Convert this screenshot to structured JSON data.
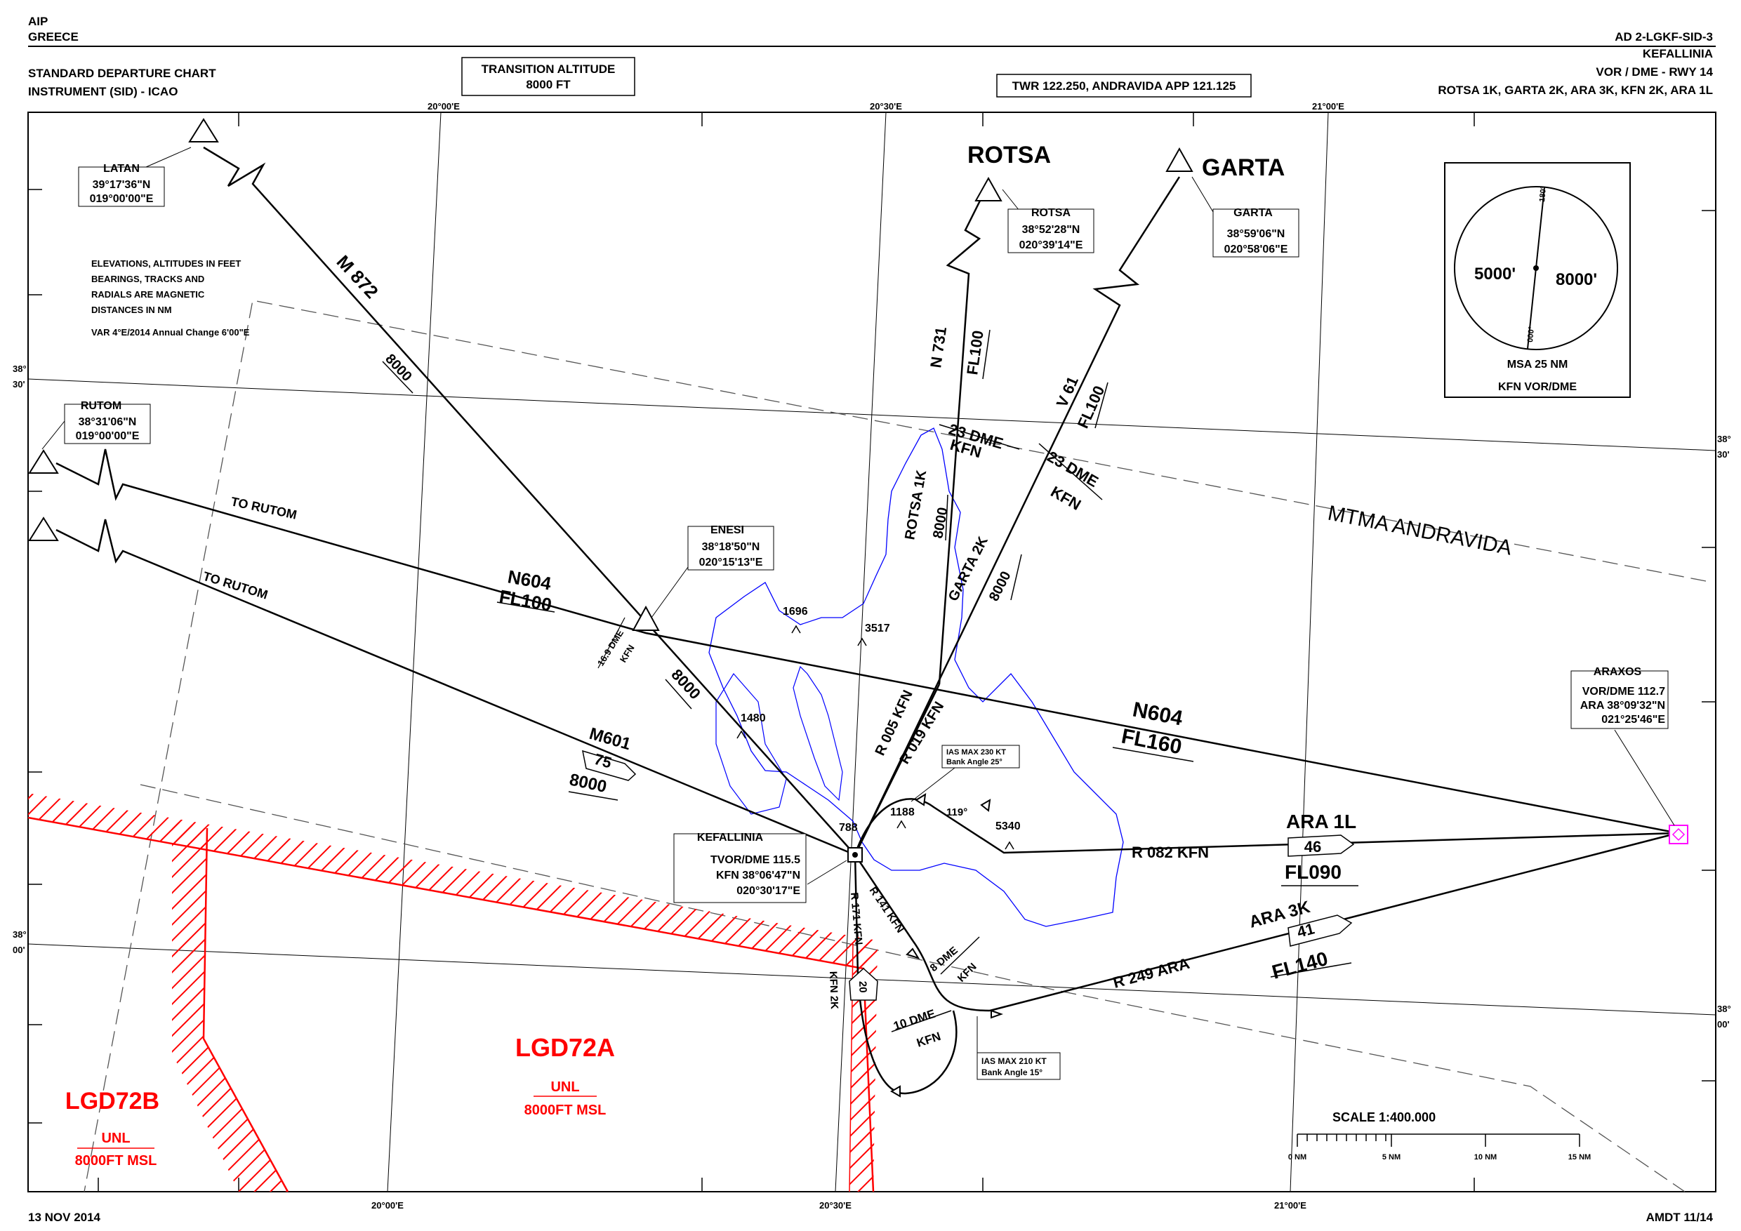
{
  "header": {
    "aip": "AIP",
    "state": "GREECE",
    "chart_id": "AD 2-LGKF-SID-3",
    "aerodrome": "KEFALLINIA",
    "procedure": "VOR / DME - RWY 14",
    "sids": "ROTSA 1K, GARTA 2K, ARA 3K, KFN 2K, ARA 1L",
    "title_line1": "STANDARD DEPARTURE CHART",
    "title_line2": "INSTRUMENT (SID) - ICAO",
    "transition_label": "TRANSITION ALTITUDE",
    "transition_value": "8000 FT",
    "comms": "TWR 122.250, ANDRAVIDA APP 121.125"
  },
  "footer": {
    "date": "13 NOV 2014",
    "amendment": "AMDT 11/14"
  },
  "grid": {
    "lon_20_00": "20°00'E",
    "lon_20_30": "20°30'E",
    "lon_21_00": "21°00'E",
    "lat_38_30_deg": "38°",
    "lat_38_30_min": "30'",
    "lat_38_00_deg": "38°",
    "lat_38_00_min": "00'"
  },
  "notes": {
    "line1": "ELEVATIONS, ALTITUDES IN FEET",
    "line2": "BEARINGS, TRACKS AND",
    "line3": "RADIALS ARE MAGNETIC",
    "line4": "DISTANCES IN NM",
    "var": "VAR 4°E/2014  Annual Change 6'00\"E"
  },
  "fixes": {
    "latan": {
      "name": "LATAN",
      "lat": "39°17'36\"N",
      "lon": "019°00'00\"E"
    },
    "rutom": {
      "name": "RUTOM",
      "lat": "38°31'06\"N",
      "lon": "019°00'00\"E"
    },
    "rotsa": {
      "title": "ROTSA",
      "name": "ROTSA",
      "lat": "38°52'28\"N",
      "lon": "020°39'14\"E"
    },
    "garta": {
      "title": "GARTA",
      "name": "GARTA",
      "lat": "38°59'06\"N",
      "lon": "020°58'06\"E"
    },
    "enesi": {
      "name": "ENESI",
      "lat": "38°18'50\"N",
      "lon": "020°15'13\"E",
      "dme": "16.9 DME",
      "dme_ref": "KFN"
    },
    "araxos": {
      "name": "ARAXOS",
      "line1": "VOR/DME 112.7",
      "line2": "ARA 38°09'32\"N",
      "line3": "021°25'46\"E"
    },
    "kefallinia": {
      "name": "KEFALLINIA",
      "line1": "TVOR/DME 115.5",
      "line2": "KFN 38°06'47\"N",
      "line3": "020°30'17\"E"
    }
  },
  "routes": {
    "m872": "M 872",
    "m872_alt": "8000",
    "to_rutom_1": "TO RUTOM",
    "to_rutom_2": "TO RUTOM",
    "n604_a": "N604",
    "n604_a_fl": "FL100",
    "n604_a_alt": "8000",
    "n604_b": "N604",
    "n604_b_fl": "FL160",
    "m601": "M601",
    "m601_dist": "75",
    "m601_alt": "8000",
    "n731": "N 731",
    "n731_fl": "FL100",
    "v61": "V 61",
    "v61_fl": "FL100",
    "rotsa_1k": "ROTSA 1K",
    "rotsa_1k_alt": "8000",
    "garta_2k": "GARTA 2K",
    "garta_2k_alt": "8000",
    "r005": "R 005 KFN",
    "r019": "R 019 KFN",
    "dme23_a": "23 DME",
    "dme23_a_ref": "KFN",
    "dme23_b": "23 DME",
    "dme23_b_ref": "KFN",
    "r082": "R 082 KFN",
    "ara1l": "ARA 1L",
    "ara1l_dist": "46",
    "ara1l_fl": "FL090",
    "ara3k": "ARA 3K",
    "ara3k_dist": "41",
    "ara3k_fl": "FL140",
    "r249": "R 249 ARA",
    "r141": "R 141 KFN",
    "r171": "R 171 KFN",
    "kfn2k": "KFN 2K",
    "kfn2k_dist": "20",
    "dme8": "8 DME",
    "dme8_ref": "KFN",
    "dme10": "10 DME",
    "dme10_ref": "KFN",
    "turn_119": "119°",
    "ias230_1": "IAS MAX 230 KT",
    "ias230_2": "Bank Angle 25°",
    "ias210_1": "IAS MAX 210 KT",
    "ias210_2": "Bank Angle 15°"
  },
  "terrain": {
    "e1696": "1696",
    "e3517": "3517",
    "e1480": "1480",
    "e1188": "1188",
    "e788": "788",
    "e5340": "5340"
  },
  "airspace": {
    "mtma": "MTMA ANDRAVIDA",
    "lgd72a": "LGD72A",
    "lgd72a_upper": "UNL",
    "lgd72a_lower": "8000FT MSL",
    "lgd72b": "LGD72B",
    "lgd72b_upper": "UNL",
    "lgd72b_lower": "8000FT MSL"
  },
  "msa": {
    "sector_w": "5000'",
    "sector_e": "8000'",
    "brg_top": "180°",
    "brg_bottom": "000°",
    "title": "MSA 25 NM",
    "ref": "KFN VOR/DME"
  },
  "scale": {
    "title": "SCALE 1:400.000",
    "t0": "0 NM",
    "t5": "5 NM",
    "t10": "10 NM",
    "t15": "15 NM"
  },
  "colors": {
    "restricted": "#ff0000",
    "coastline": "#0000ff",
    "waypoint_araxos": "#ff00ff"
  }
}
